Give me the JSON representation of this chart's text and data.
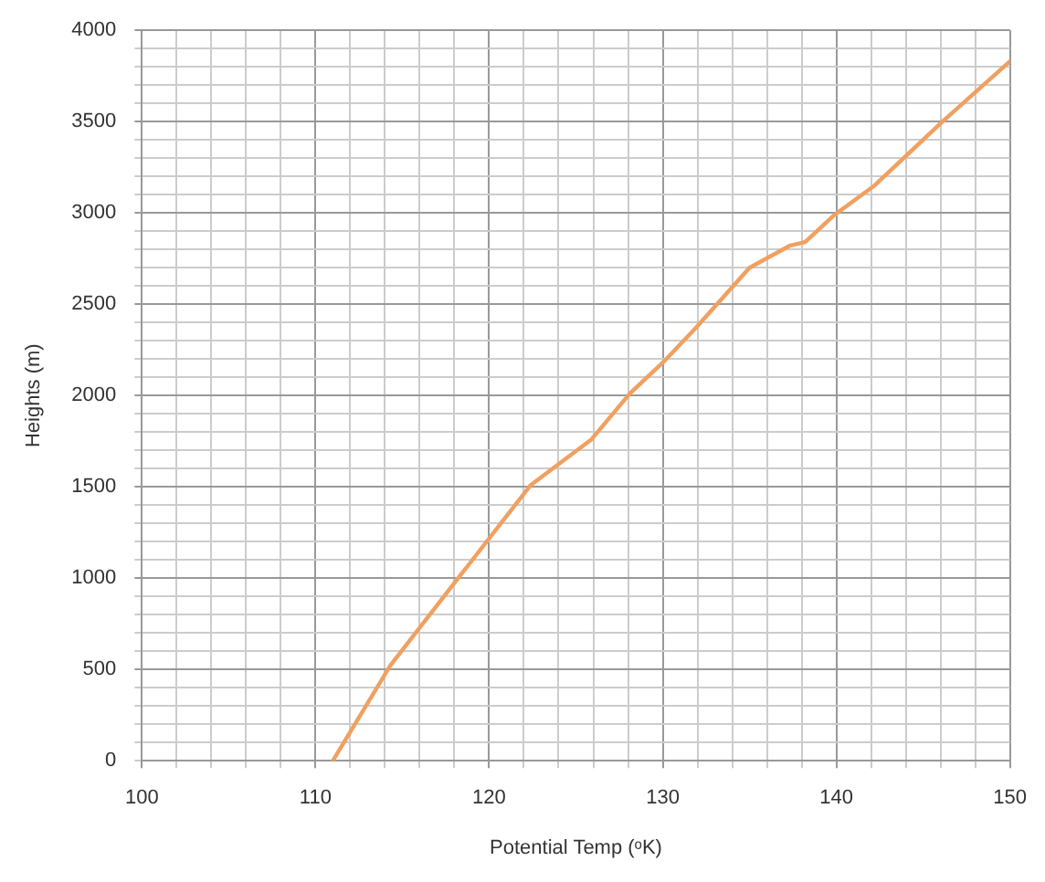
{
  "chart_data": {
    "type": "line",
    "xlabel": "Potential Temp (ᵒK)",
    "ylabel": "Heights (m)",
    "x": [
      111.0,
      114.3,
      118.3,
      122.4,
      125.9,
      128.1,
      130.0,
      131.9,
      135.0,
      137.3,
      138.2,
      139.9,
      142.2,
      146.0,
      150.0
    ],
    "series": [
      {
        "color": "#f0a060",
        "values": [
          0,
          520,
          1010,
          1510,
          1760,
          2010,
          2180,
          2370,
          2700,
          2820,
          2840,
          2990,
          3150,
          3490,
          3830
        ]
      }
    ],
    "xlim": [
      100,
      150
    ],
    "ylim": [
      0,
      4000
    ],
    "xticks": [
      100,
      {
        "value": 102,
        "label": null
      },
      {
        "value": 104,
        "label": null
      },
      {
        "value": 106,
        "label": null
      },
      {
        "value": 108,
        "label": null
      },
      110,
      {
        "value": 112,
        "label": null
      },
      {
        "value": 114,
        "label": null
      },
      {
        "value": 116,
        "label": null
      },
      {
        "value": 118,
        "label": null
      },
      120,
      {
        "value": 122,
        "label": null
      },
      {
        "value": 124,
        "label": null
      },
      {
        "value": 126,
        "label": null
      },
      {
        "value": 128,
        "label": null
      },
      130,
      {
        "value": 132,
        "label": null
      },
      {
        "value": 134,
        "label": null
      },
      {
        "value": 136,
        "label": null
      },
      {
        "value": 138,
        "label": null
      },
      140,
      {
        "value": 142,
        "label": null
      },
      {
        "value": 144,
        "label": null
      },
      {
        "value": 146,
        "label": null
      },
      {
        "value": 148,
        "label": null
      },
      150
    ],
    "yticks": [
      0,
      {
        "value": 100,
        "label": null
      },
      {
        "value": 200,
        "label": null
      },
      {
        "value": 300,
        "label": null
      },
      {
        "value": 400,
        "label": null
      },
      500,
      {
        "value": 600,
        "label": null
      },
      {
        "value": 700,
        "label": null
      },
      {
        "value": 800,
        "label": null
      },
      {
        "value": 900,
        "label": null
      },
      1000,
      {
        "value": 1100,
        "label": null
      },
      {
        "value": 1200,
        "label": null
      },
      {
        "value": 1300,
        "label": null
      },
      {
        "value": 1400,
        "label": null
      },
      1500,
      {
        "value": 1600,
        "label": null
      },
      {
        "value": 1700,
        "label": null
      },
      {
        "value": 1800,
        "label": null
      },
      {
        "value": 1900,
        "label": null
      },
      2000,
      {
        "value": 2100,
        "label": null
      },
      {
        "value": 2200,
        "label": null
      },
      {
        "value": 2300,
        "label": null
      },
      {
        "value": 2400,
        "label": null
      },
      2500,
      {
        "value": 2600,
        "label": null
      },
      {
        "value": 2700,
        "label": null
      },
      {
        "value": 2800,
        "label": null
      },
      {
        "value": 2900,
        "label": null
      },
      3000,
      {
        "value": 3100,
        "label": null
      },
      {
        "value": 3200,
        "label": null
      },
      {
        "value": 3300,
        "label": null
      },
      {
        "value": 3400,
        "label": null
      },
      3500,
      {
        "value": 3600,
        "label": null
      },
      {
        "value": 3700,
        "label": null
      },
      {
        "value": 3800,
        "label": null
      },
      {
        "value": 3900,
        "label": null
      },
      4000
    ],
    "grid": true,
    "legend": false,
    "marker": "none",
    "line_style": "solid"
  }
}
